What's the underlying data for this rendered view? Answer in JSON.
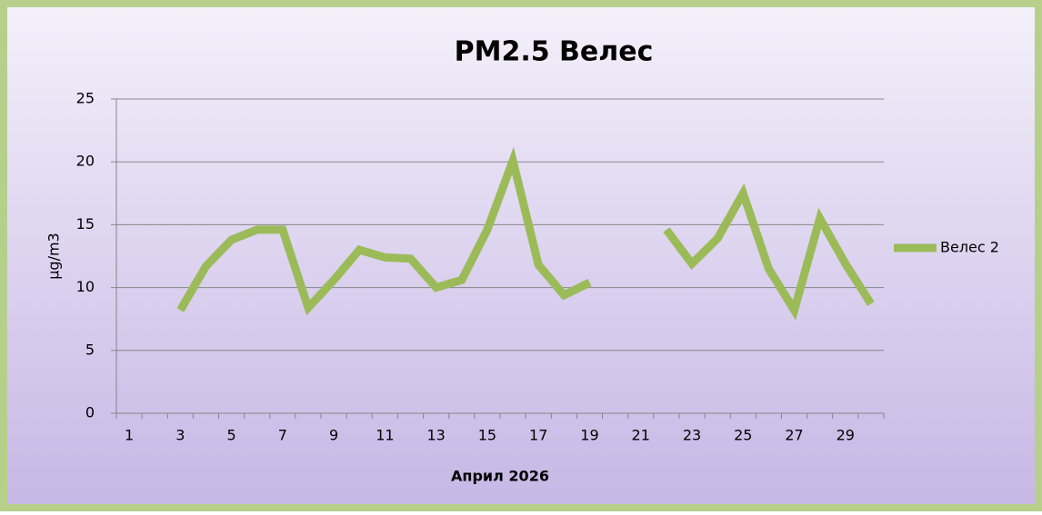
{
  "chart_data": {
    "type": "line",
    "title": "PM2.5 Велес",
    "x_label": "Април 2026",
    "y_label": "µg/m3",
    "categories": [
      "1",
      null,
      "3",
      null,
      "5",
      null,
      "7",
      null,
      "9",
      null,
      "11",
      null,
      "13",
      null,
      "15",
      null,
      "17",
      null,
      "19",
      null,
      "21",
      null,
      "23",
      null,
      "25",
      null,
      "27",
      null,
      "29",
      null
    ],
    "series": [
      {
        "name": "Велес 2",
        "color": "#9bbb59",
        "values": [
          null,
          null,
          8.2,
          11.7,
          13.8,
          14.6,
          14.6,
          8.4,
          10.6,
          13.0,
          12.4,
          12.3,
          10.0,
          10.6,
          14.6,
          20.1,
          11.8,
          9.4,
          10.4,
          null,
          null,
          14.6,
          11.9,
          13.9,
          17.5,
          11.5,
          8.2,
          15.5,
          11.9,
          8.7
        ]
      }
    ],
    "ylim": [
      0,
      25
    ],
    "yticks": [
      0,
      5,
      10,
      15,
      20,
      25
    ],
    "grid": true,
    "legend": "right"
  }
}
